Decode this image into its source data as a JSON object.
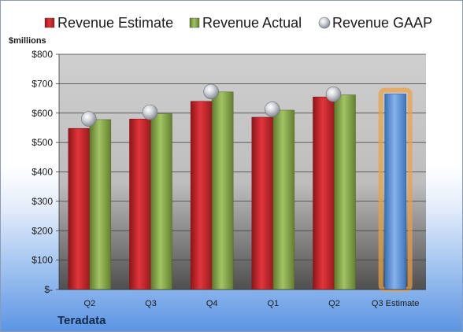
{
  "chart_data": {
    "type": "bar",
    "unit_label": "$millions",
    "company": "Teradata",
    "categories": [
      "Q2",
      "Q3",
      "Q4",
      "Q1",
      "Q2",
      "Q3 Estimate"
    ],
    "ylim": [
      0,
      800
    ],
    "yticks": [
      {
        "value": 0,
        "label": "$-"
      },
      {
        "value": 100,
        "label": "$100"
      },
      {
        "value": 200,
        "label": "$200"
      },
      {
        "value": 300,
        "label": "$300"
      },
      {
        "value": 400,
        "label": "$400"
      },
      {
        "value": 500,
        "label": "$500"
      },
      {
        "value": 600,
        "label": "$600"
      },
      {
        "value": 700,
        "label": "$700"
      },
      {
        "value": 800,
        "label": "$800"
      }
    ],
    "series": [
      {
        "name": "Revenue Estimate",
        "kind": "bar",
        "color": "#c0262c",
        "values": [
          548,
          580,
          640,
          586,
          655,
          null
        ]
      },
      {
        "name": "Revenue Actual",
        "kind": "bar",
        "color": "#86a84a",
        "values": [
          578,
          598,
          672,
          610,
          662,
          null
        ]
      },
      {
        "name": "Revenue GAAP",
        "kind": "marker",
        "color": "#b8bcc2",
        "values": [
          580,
          603,
          673,
          613,
          664,
          null
        ]
      }
    ],
    "estimate_bar": {
      "category_index": 5,
      "value": 665,
      "color": "#5b8fd6",
      "highlight_color": "#f0a040"
    },
    "legend_position": "top",
    "grid": true
  }
}
